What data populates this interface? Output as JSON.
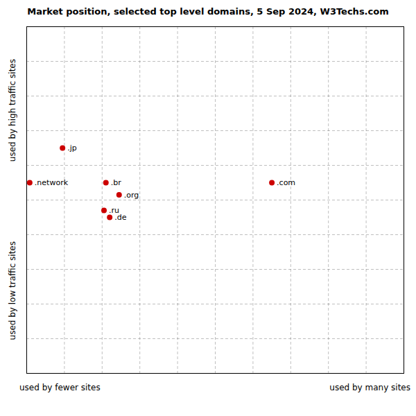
{
  "chart_data": {
    "type": "scatter",
    "title": "Market position, selected top level domains, 5 Sep 2024, W3Techs.com",
    "xlabel_left": "used by fewer sites",
    "xlabel_right": "used by many sites",
    "ylabel_top": "used by high traffic sites",
    "ylabel_bottom": "used by low traffic sites",
    "labels": [
      ".jp",
      ".network",
      ".br",
      ".org",
      ".ru",
      ".de",
      ".com"
    ],
    "x": [
      0.95,
      0.08,
      2.1,
      2.45,
      2.05,
      2.2,
      6.5
    ],
    "y": [
      6.5,
      5.5,
      5.5,
      5.15,
      4.7,
      4.5,
      5.5
    ],
    "color": "#cc0000",
    "xlim": [
      0,
      10
    ],
    "ylim": [
      0,
      10
    ],
    "xticks": [
      0,
      1,
      2,
      3,
      4,
      5,
      6,
      7,
      8,
      9,
      10
    ],
    "yticks": [
      0,
      1,
      2,
      3,
      4,
      5,
      6,
      7,
      8,
      9,
      10
    ],
    "grid": true,
    "tick_labels": false
  }
}
